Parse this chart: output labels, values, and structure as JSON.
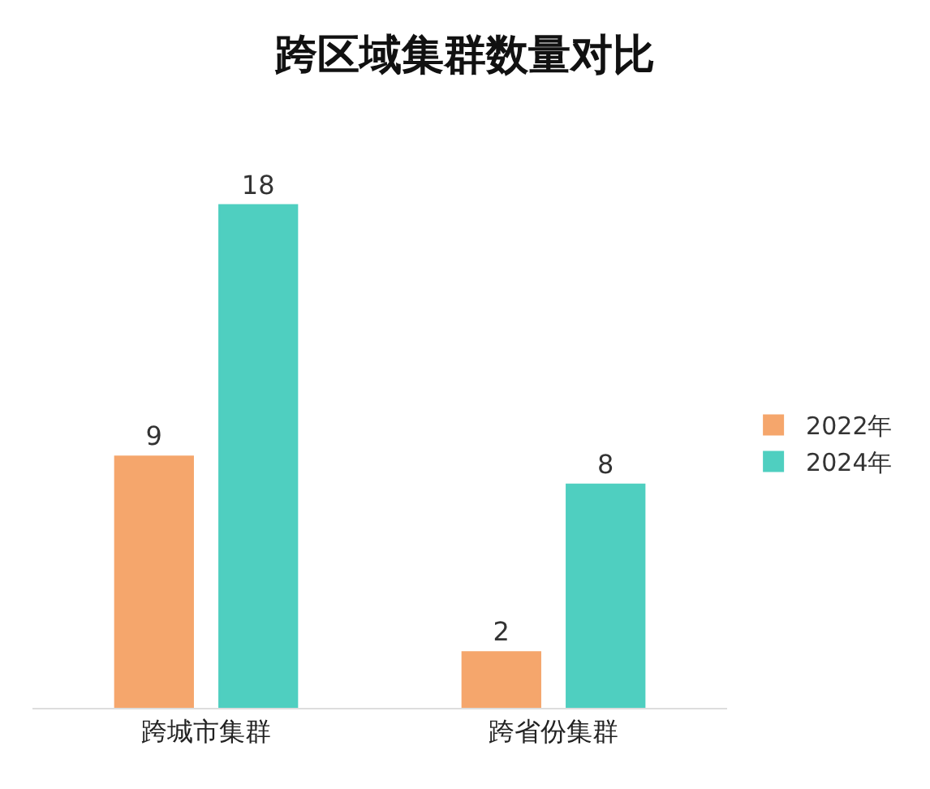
{
  "chart_data": {
    "type": "bar",
    "title": "跨区域集群数量对比",
    "categories": [
      "跨城市集群",
      "跨省份集群"
    ],
    "series": [
      {
        "name": "2022年",
        "color": "#f5a66c",
        "values": [
          9,
          2
        ]
      },
      {
        "name": "2024年",
        "color": "#4fcfc0",
        "values": [
          18,
          8
        ]
      }
    ],
    "data_labels": true,
    "legend": "right",
    "grid": false,
    "tick_labels": "x"
  }
}
